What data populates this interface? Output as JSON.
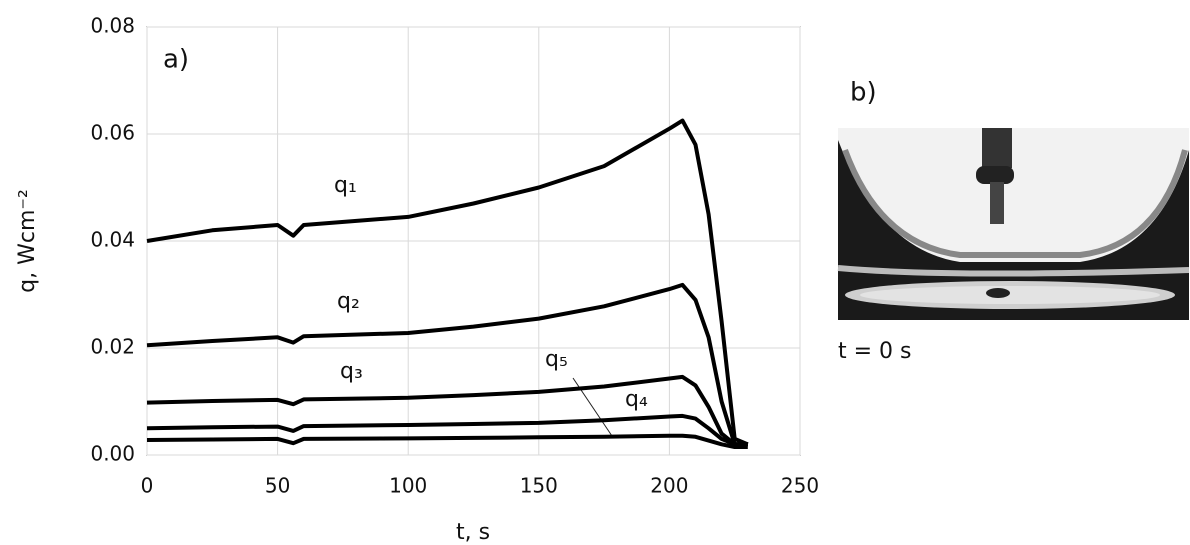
{
  "chart_data": {
    "type": "line",
    "panel_label": "a)",
    "xlabel": "t, s",
    "ylabel": "q, Wcm⁻²",
    "x": [
      0,
      25,
      50,
      56,
      60,
      100,
      125,
      150,
      175,
      200,
      205,
      210,
      215,
      220,
      225,
      230
    ],
    "series": [
      {
        "name": "q₁",
        "color": "#000000",
        "values": [
          0.04,
          0.042,
          0.043,
          0.041,
          0.043,
          0.0445,
          0.047,
          0.05,
          0.054,
          0.061,
          0.0625,
          0.058,
          0.045,
          0.025,
          0.003,
          0.002
        ]
      },
      {
        "name": "q₂",
        "color": "#000000",
        "values": [
          0.0205,
          0.0213,
          0.022,
          0.021,
          0.0222,
          0.0228,
          0.024,
          0.0255,
          0.0278,
          0.031,
          0.0318,
          0.029,
          0.022,
          0.01,
          0.002,
          0.002
        ]
      },
      {
        "name": "q₃",
        "color": "#000000",
        "values": [
          0.0098,
          0.0101,
          0.0103,
          0.0095,
          0.0104,
          0.0107,
          0.0112,
          0.0118,
          0.0128,
          0.0143,
          0.0146,
          0.013,
          0.009,
          0.004,
          0.002,
          0.002
        ]
      },
      {
        "name": "q₄",
        "color": "#000000",
        "values": [
          0.005,
          0.0052,
          0.0053,
          0.0045,
          0.0054,
          0.0056,
          0.0058,
          0.006,
          0.0065,
          0.0072,
          0.0073,
          0.0068,
          0.005,
          0.003,
          0.002,
          0.002
        ]
      },
      {
        "name": "q₅",
        "color": "#000000",
        "values": [
          0.0028,
          0.0029,
          0.003,
          0.0022,
          0.003,
          0.0031,
          0.0032,
          0.0033,
          0.0034,
          0.0036,
          0.0036,
          0.0034,
          0.0027,
          0.002,
          0.0015,
          0.0015
        ]
      }
    ],
    "xlim": [
      0,
      250
    ],
    "xticks": [
      0,
      50,
      100,
      150,
      200,
      250
    ],
    "ylim": [
      0,
      0.08
    ],
    "yticks": [
      {
        "value": 0,
        "label": "0.00"
      },
      0.02,
      0.04,
      0.06,
      0.08
    ],
    "grid": true
  },
  "photo": {
    "panel_label": "b)",
    "caption": "t = 0 s"
  }
}
